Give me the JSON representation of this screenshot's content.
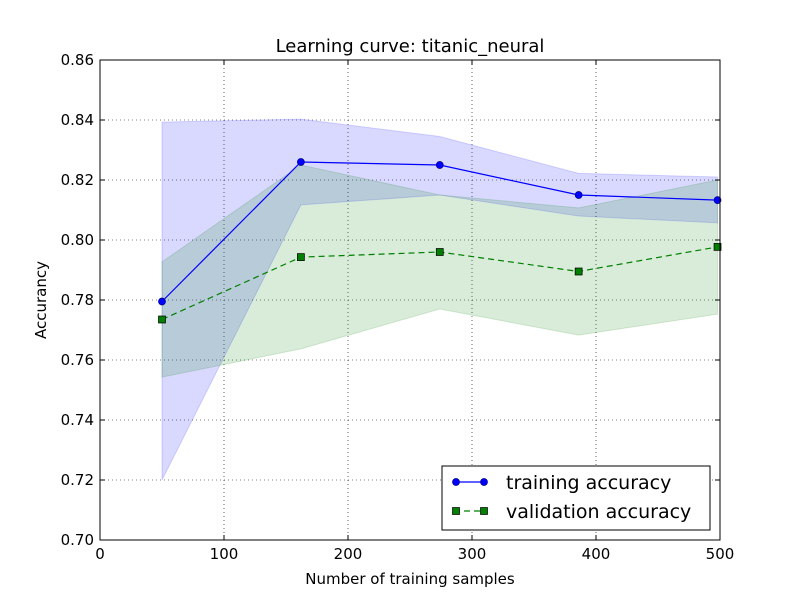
{
  "chart_data": {
    "type": "line",
    "title": "Learning curve: titanic_neural",
    "xlabel": "Number of training samples",
    "ylabel": "Accurancy",
    "xlim": [
      0,
      500
    ],
    "ylim": [
      0.7,
      0.86
    ],
    "grid": true,
    "legend_position": "lower-right",
    "xticks": [
      0,
      100,
      200,
      300,
      400,
      500
    ],
    "xtick_labels": [
      "0",
      "100",
      "200",
      "300",
      "400",
      "500"
    ],
    "yticks": [
      0.7,
      0.72,
      0.74,
      0.76,
      0.78,
      0.8,
      0.82,
      0.84,
      0.86
    ],
    "ytick_labels": [
      "0.70",
      "0.72",
      "0.74",
      "0.76",
      "0.78",
      "0.80",
      "0.82",
      "0.84",
      "0.86"
    ],
    "x": [
      50,
      162,
      274,
      386,
      498
    ],
    "series": [
      {
        "name": "training accuracy",
        "values": [
          0.7795,
          0.826,
          0.825,
          0.815,
          0.8133
        ],
        "band_upper": [
          0.8393,
          0.8403,
          0.8345,
          0.8222,
          0.821
        ],
        "band_lower": [
          0.72,
          0.8117,
          0.815,
          0.808,
          0.8057
        ],
        "color": "#0000ff",
        "band_color": "#0000ff",
        "marker": "circle",
        "line_style": "solid"
      },
      {
        "name": "validation accuracy",
        "values": [
          0.7735,
          0.7943,
          0.796,
          0.7895,
          0.7977
        ],
        "band_upper": [
          0.7927,
          0.825,
          0.815,
          0.8107,
          0.82
        ],
        "band_lower": [
          0.7543,
          0.7637,
          0.777,
          0.7683,
          0.7753
        ],
        "color": "#007f00",
        "band_color": "#008000",
        "marker": "square",
        "line_style": "dashed"
      }
    ]
  }
}
